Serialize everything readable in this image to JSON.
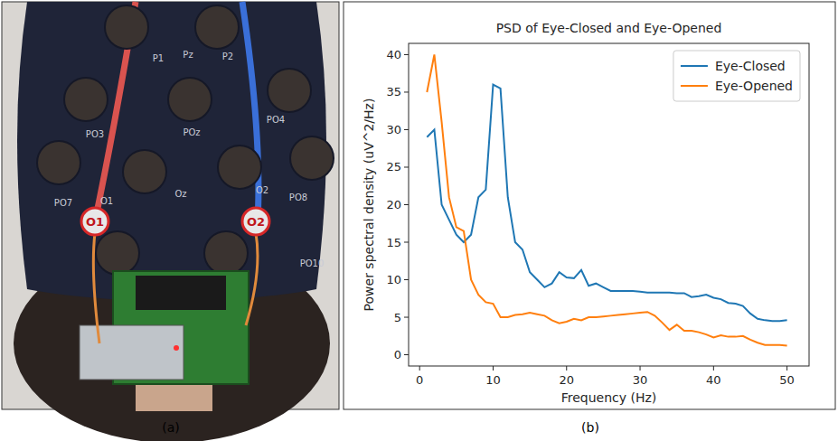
{
  "photo": {
    "caption": "(a)",
    "cap_labels": [
      "P1",
      "Pz",
      "P2",
      "PO3",
      "POz",
      "PO4",
      "PO7",
      "O1",
      "Oz",
      "O2",
      "PO8",
      "PO10"
    ],
    "electrodes": [
      "O1",
      "O2"
    ]
  },
  "chart_data": {
    "type": "line",
    "caption": "(b)",
    "title": "PSD of Eye-Closed and Eye-Opened",
    "x_label": "Frequency (Hz)",
    "y_label": "Power spectral density (uV^2/Hz)",
    "x": [
      1,
      2,
      3,
      4,
      5,
      6,
      7,
      8,
      9,
      10,
      11,
      12,
      13,
      14,
      15,
      16,
      17,
      18,
      19,
      20,
      21,
      22,
      23,
      24,
      25,
      26,
      27,
      28,
      29,
      30,
      31,
      32,
      33,
      34,
      35,
      36,
      37,
      38,
      39,
      40,
      41,
      42,
      43,
      44,
      45,
      46,
      47,
      48,
      49,
      50
    ],
    "series": [
      {
        "name": "Eye-Closed",
        "color": "#1f77b4",
        "values": [
          29,
          30,
          20,
          18,
          16,
          15,
          16,
          21,
          22,
          36,
          35.5,
          21,
          15,
          14,
          11,
          10,
          9,
          9.5,
          11,
          10.3,
          10.2,
          11.3,
          9.2,
          9.5,
          9,
          8.5,
          8.5,
          8.5,
          8.5,
          8.4,
          8.3,
          8.3,
          8.3,
          8.3,
          8.2,
          8.2,
          7.7,
          7.8,
          8,
          7.6,
          7.4,
          6.9,
          6.8,
          6.5,
          5.5,
          4.8,
          4.6,
          4.5,
          4.5,
          4.6
        ]
      },
      {
        "name": "Eye-Opened",
        "color": "#ff7f0e",
        "values": [
          35,
          40,
          31,
          21,
          17,
          16.5,
          10,
          8,
          7,
          6.8,
          5,
          5,
          5.3,
          5.4,
          5.6,
          5.4,
          5.2,
          4.6,
          4.2,
          4.4,
          4.8,
          4.6,
          5,
          5,
          5.1,
          5.2,
          5.3,
          5.4,
          5.5,
          5.6,
          5.7,
          5.2,
          4.3,
          3.3,
          4,
          3.2,
          3.2,
          3,
          2.7,
          2.3,
          2.6,
          2.4,
          2.4,
          2.5,
          2,
          1.6,
          1.3,
          1.3,
          1.3,
          1.2
        ]
      }
    ],
    "xlim": [
      -1.5,
      53
    ],
    "ylim": [
      -1.5,
      41.5
    ],
    "xticks": [
      0,
      10,
      20,
      30,
      40,
      50
    ],
    "yticks": [
      0,
      5,
      10,
      15,
      20,
      25,
      30,
      35,
      40
    ],
    "grid": false,
    "legend": "upper right"
  }
}
